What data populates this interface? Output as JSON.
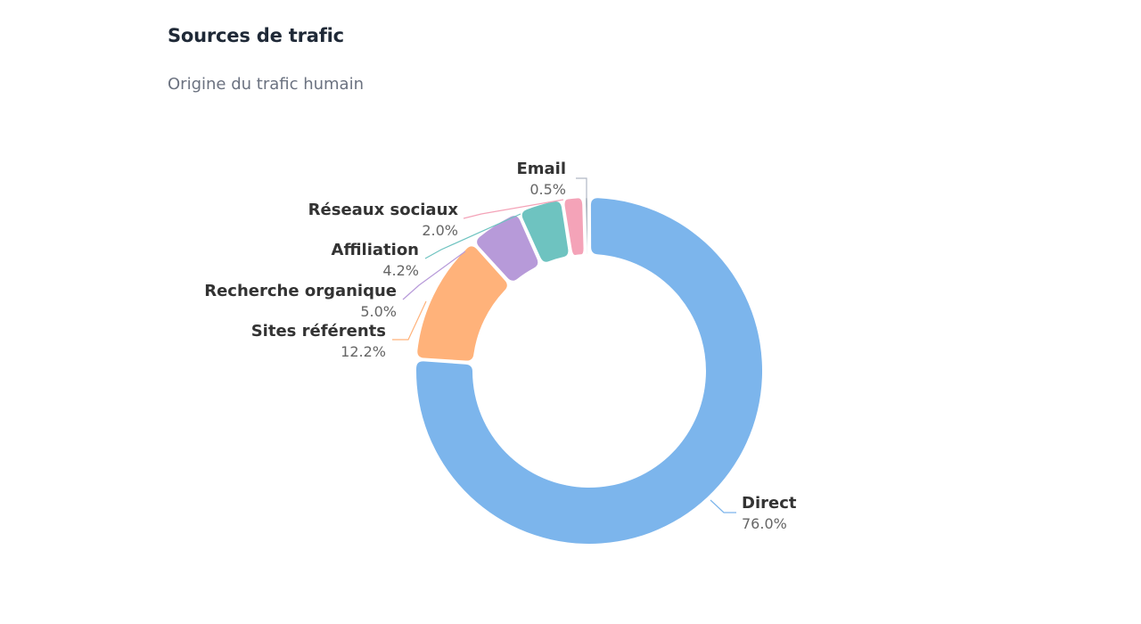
{
  "header": {
    "title": "Sources de trafic",
    "subtitle": "Origine du trafic humain"
  },
  "chart_data": {
    "type": "pie",
    "variant": "donut",
    "title": "Sources de trafic",
    "subtitle": "Origine du trafic humain",
    "categories": [
      "Direct",
      "Sites référents",
      "Recherche organique",
      "Affiliation",
      "Réseaux sociaux",
      "Email"
    ],
    "values": [
      76.0,
      12.2,
      5.0,
      4.2,
      2.0,
      0.5
    ],
    "value_labels": [
      "76.0%",
      "12.2%",
      "5.0%",
      "4.2%",
      "2.0%",
      "0.5%"
    ],
    "colors": [
      "#7cb5ec",
      "#ffb27a",
      "#b79ad9",
      "#6ec3c0",
      "#f4a3b8",
      "#b0b8c4"
    ],
    "legend": "none",
    "data_labels": "outside"
  }
}
